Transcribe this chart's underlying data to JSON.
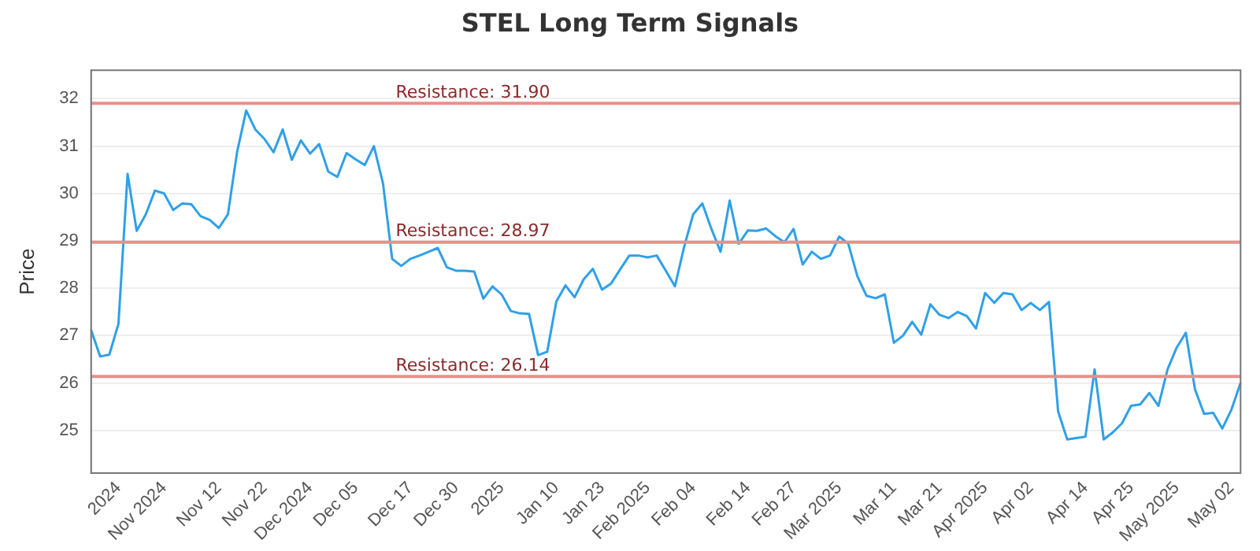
{
  "chart_data": {
    "type": "line",
    "title": "STEL Long Term Signals",
    "ylabel": "Price",
    "categories": [
      null,
      null,
      null,
      "2024",
      null,
      null,
      null,
      null,
      "Nov 2024",
      null,
      null,
      null,
      null,
      null,
      "Nov 12",
      null,
      null,
      null,
      null,
      "Nov 22",
      null,
      null,
      null,
      null,
      "Dec 2024",
      null,
      null,
      null,
      null,
      "Dec 05",
      null,
      null,
      null,
      null,
      null,
      "Dec 17",
      null,
      null,
      null,
      null,
      "Dec 30",
      null,
      null,
      null,
      null,
      "2025",
      null,
      null,
      null,
      null,
      null,
      "Jan 10",
      null,
      null,
      null,
      null,
      "Jan 23",
      null,
      null,
      null,
      null,
      "Feb 2025",
      null,
      null,
      null,
      null,
      "Feb 04",
      null,
      null,
      null,
      null,
      null,
      "Feb 14",
      null,
      null,
      null,
      null,
      "Feb 27",
      null,
      null,
      null,
      null,
      "Mar 2025",
      null,
      null,
      null,
      null,
      null,
      "Mar 11",
      null,
      null,
      null,
      null,
      "Mar 21",
      null,
      null,
      null,
      null,
      "Apr 2025",
      null,
      null,
      null,
      null,
      "Apr 02",
      null,
      null,
      null,
      null,
      null,
      "Apr 14",
      null,
      null,
      null,
      null,
      "Apr 25",
      null,
      null,
      null,
      null,
      "May 2025",
      null,
      null,
      null,
      null,
      null,
      "May 02",
      null
    ],
    "series": [
      {
        "color": "#2fa0e8",
        "values": [
          27.12,
          26.56,
          26.6,
          27.25,
          30.41,
          29.21,
          29.56,
          30.06,
          30.0,
          29.65,
          29.79,
          29.77,
          29.52,
          29.44,
          29.27,
          29.56,
          30.87,
          31.75,
          31.35,
          31.15,
          30.87,
          31.35,
          30.71,
          31.12,
          30.84,
          31.04,
          30.46,
          30.35,
          30.85,
          30.72,
          30.6,
          31.0,
          30.21,
          28.62,
          28.47,
          28.62,
          28.69,
          28.77,
          28.85,
          28.44,
          28.37,
          28.37,
          28.35,
          27.78,
          28.04,
          27.87,
          27.52,
          27.47,
          27.46,
          26.59,
          26.66,
          27.72,
          28.06,
          27.81,
          28.19,
          28.41,
          27.97,
          28.1,
          28.4,
          28.69,
          28.69,
          28.65,
          28.69,
          28.37,
          28.04,
          28.87,
          29.56,
          29.79,
          29.25,
          28.77,
          29.85,
          28.94,
          29.22,
          29.21,
          29.26,
          29.1,
          28.97,
          29.25,
          28.5,
          28.77,
          28.62,
          28.69,
          29.09,
          28.94,
          28.25,
          27.84,
          27.79,
          27.87,
          26.85,
          27.0,
          27.29,
          27.02,
          27.66,
          27.44,
          27.37,
          27.5,
          27.41,
          27.15,
          27.9,
          27.69,
          27.9,
          27.87,
          27.54,
          27.69,
          27.54,
          27.71,
          25.4,
          24.81,
          24.84,
          24.87,
          26.29,
          24.81,
          24.96,
          25.15,
          25.52,
          25.55,
          25.79,
          25.52,
          26.29,
          26.75,
          27.06,
          25.87,
          25.35,
          25.37,
          25.04,
          25.44,
          26.0
        ]
      }
    ],
    "ylim": [
      24.1,
      32.6
    ],
    "yticks": [
      25,
      26,
      27,
      28,
      29,
      30,
      31,
      32
    ],
    "grid": "y",
    "marker": "none",
    "line_style": "solid",
    "ref_lines": [
      {
        "axis": "y",
        "value": 31.9,
        "label": "Resistance: 31.90",
        "color": "#e8908c"
      },
      {
        "axis": "y",
        "value": 28.97,
        "label": "Resistance: 28.97",
        "color": "#e8908c"
      },
      {
        "axis": "y",
        "value": 26.14,
        "label": "Resistance: 26.14",
        "color": "#e8908c"
      }
    ]
  }
}
